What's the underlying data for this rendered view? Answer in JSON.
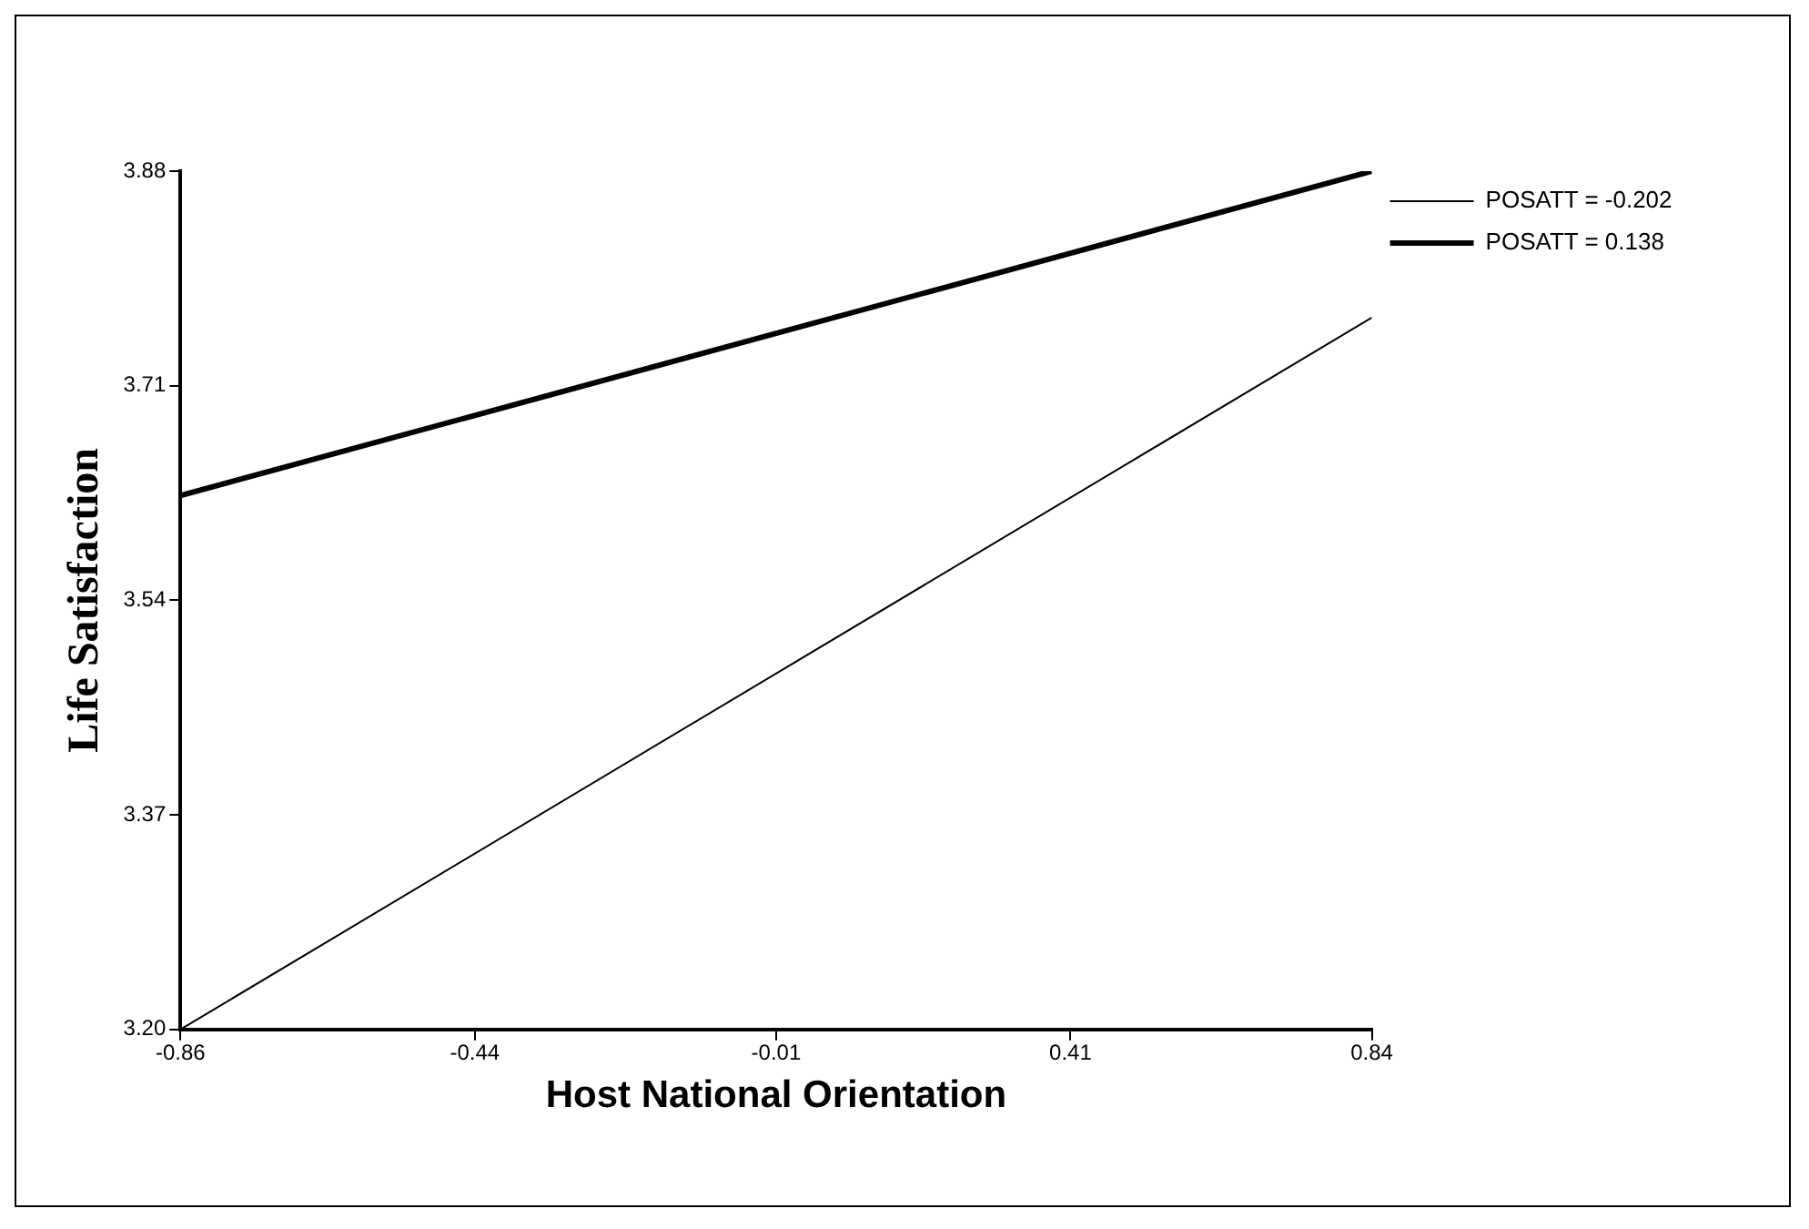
{
  "chart_data": {
    "type": "line",
    "xlabel": "Host National Orientation",
    "ylabel": "Life Satisfaction",
    "x": [
      -0.86,
      0.84
    ],
    "series": [
      {
        "name": "POSATT = -0.202",
        "color": "#000000",
        "values": [
          3.2,
          3.764
        ]
      },
      {
        "name": "POSATT = 0.138",
        "color": "#000000",
        "values": [
          3.623,
          3.88
        ]
      }
    ],
    "xlim": [
      -0.86,
      0.84
    ],
    "xticks": [
      -0.86,
      -0.44,
      -0.01,
      0.41,
      0.84
    ],
    "ylim": [
      3.2,
      3.88
    ],
    "yticks": [
      {
        "value": 3.2,
        "label": "3.20"
      },
      3.37,
      3.54,
      3.71,
      3.88
    ],
    "grid": false,
    "legend": "top right",
    "marker": "none",
    "line_style": "solid"
  }
}
